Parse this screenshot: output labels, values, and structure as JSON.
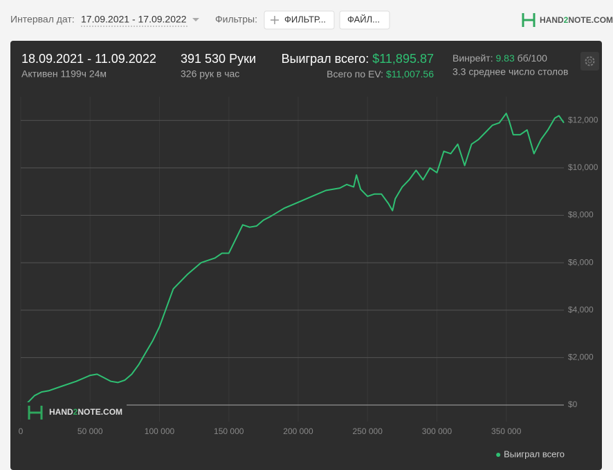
{
  "toolbar": {
    "date_label": "Интервал дат:",
    "date_range": "17.09.2021 - 17.09.2022",
    "filters_label": "Фильтры:",
    "filter_button": "ФИЛЬТР...",
    "file_button": "ФАЙЛ...",
    "logo": [
      "HAND",
      "2",
      "NOTE.COM"
    ]
  },
  "stats": {
    "period": "18.09.2021 - 11.09.2022",
    "active": "Активен 1199ч 24м",
    "hands": "391 530 Руки",
    "hands_per_hour": "326 рук в час",
    "won_label": "Выиграл всего:",
    "won_value": "$11,895.87",
    "ev_label": "Всего по EV:",
    "ev_value": "$11,007.56",
    "winrate_label": "Винрейт:",
    "winrate_value": "9.83",
    "winrate_unit": "бб/100",
    "tables": "3.3 среднее число столов"
  },
  "watermark": [
    "HAND",
    "2",
    "NOTE.COM"
  ],
  "chart_data": {
    "type": "line",
    "x": [
      0,
      5000,
      10000,
      15000,
      20000,
      30000,
      40000,
      50000,
      55000,
      60000,
      65000,
      70000,
      75000,
      80000,
      85000,
      90000,
      95000,
      100000,
      105000,
      110000,
      115000,
      120000,
      130000,
      140000,
      145000,
      150000,
      155000,
      160000,
      165000,
      170000,
      175000,
      180000,
      190000,
      200000,
      210000,
      220000,
      230000,
      235000,
      240000,
      242000,
      245000,
      250000,
      255000,
      260000,
      265000,
      268000,
      270000,
      275000,
      280000,
      285000,
      290000,
      295000,
      300000,
      305000,
      310000,
      315000,
      320000,
      325000,
      330000,
      335000,
      340000,
      345000,
      350000,
      352000,
      355000,
      360000,
      365000,
      370000,
      375000,
      380000,
      385000,
      388000,
      391530
    ],
    "series": [
      {
        "name": "Выиграл всего",
        "color": "#2fc073",
        "values": [
          0,
          100,
          400,
          550,
          600,
          800,
          1000,
          1250,
          1300,
          1150,
          1000,
          950,
          1050,
          1300,
          1700,
          2200,
          2700,
          3300,
          4100,
          4900,
          5200,
          5500,
          6000,
          6200,
          6400,
          6400,
          7000,
          7600,
          7500,
          7550,
          7800,
          7950,
          8300,
          8550,
          8800,
          9050,
          9150,
          9300,
          9200,
          9700,
          9100,
          8800,
          8900,
          8900,
          8500,
          8200,
          8700,
          9200,
          9500,
          9900,
          9500,
          10000,
          9800,
          10700,
          10600,
          11000,
          10100,
          11000,
          11200,
          11500,
          11800,
          11900,
          12300,
          12000,
          11400,
          11400,
          11600,
          10600,
          11200,
          11600,
          12100,
          12200,
          11900
        ]
      }
    ],
    "xlim": [
      0,
      391530
    ],
    "ylim": [
      -700,
      13000
    ],
    "xticks": [
      0,
      {
        "value": 50000,
        "label": "50 000"
      },
      {
        "value": 100000,
        "label": "100 000"
      },
      {
        "value": 150000,
        "label": "150 000"
      },
      {
        "value": 200000,
        "label": "200 000"
      },
      {
        "value": 250000,
        "label": "250 000"
      },
      {
        "value": 300000,
        "label": "300 000"
      },
      {
        "value": 350000,
        "label": "350 000"
      }
    ],
    "yticks": [
      {
        "value": 0,
        "label": "$0"
      },
      {
        "value": 2000,
        "label": "$2,000"
      },
      {
        "value": 4000,
        "label": "$4,000"
      },
      {
        "value": 6000,
        "label": "$6,000"
      },
      {
        "value": 8000,
        "label": "$8,000"
      },
      {
        "value": 10000,
        "label": "$10,000"
      },
      {
        "value": 12000,
        "label": "$12,000"
      }
    ],
    "grid": true,
    "legend": "bottom-right"
  }
}
